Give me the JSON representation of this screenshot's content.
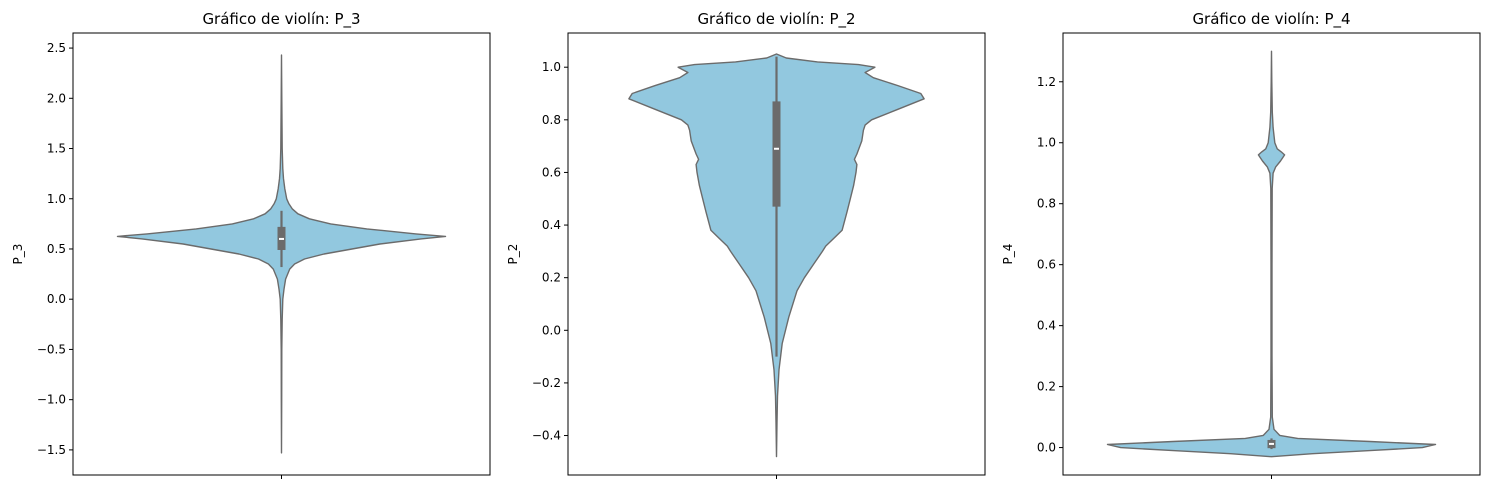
{
  "colors": {
    "fill": "#92c8df",
    "edge": "#6b6b6b",
    "axes": "#000000",
    "median": "#ffffff"
  },
  "chart_data": [
    {
      "type": "violin",
      "title": "Gráfico de violín: P_3",
      "ylabel": "P_3",
      "ylim": [
        -1.75,
        2.65
      ],
      "yticks": [
        -1.5,
        -1.0,
        -0.5,
        0.0,
        0.5,
        1.0,
        1.5,
        2.0,
        2.5
      ],
      "ytick_labels": [
        "−1.5",
        "−1.0",
        "−0.5",
        "0.0",
        "0.5",
        "1.0",
        "1.5",
        "2.0",
        "2.5"
      ],
      "box": {
        "min": 0.32,
        "q1": 0.49,
        "median": 0.6,
        "q3": 0.72,
        "max": 0.88
      },
      "range": [
        -1.53,
        2.43
      ],
      "density": [
        [
          -1.53,
          0.0
        ],
        [
          -1.0,
          0.001
        ],
        [
          -0.5,
          0.002
        ],
        [
          -0.2,
          0.004
        ],
        [
          0.0,
          0.008
        ],
        [
          0.1,
          0.015
        ],
        [
          0.2,
          0.025
        ],
        [
          0.3,
          0.05
        ],
        [
          0.35,
          0.08
        ],
        [
          0.4,
          0.14
        ],
        [
          0.45,
          0.26
        ],
        [
          0.5,
          0.43
        ],
        [
          0.55,
          0.6
        ],
        [
          0.6,
          0.85
        ],
        [
          0.625,
          1.0
        ],
        [
          0.65,
          0.82
        ],
        [
          0.7,
          0.52
        ],
        [
          0.75,
          0.3
        ],
        [
          0.8,
          0.17
        ],
        [
          0.85,
          0.1
        ],
        [
          0.9,
          0.065
        ],
        [
          0.95,
          0.045
        ],
        [
          1.0,
          0.032
        ],
        [
          1.1,
          0.02
        ],
        [
          1.2,
          0.012
        ],
        [
          1.3,
          0.008
        ],
        [
          1.5,
          0.004
        ],
        [
          2.0,
          0.002
        ],
        [
          2.43,
          0.0
        ]
      ]
    },
    {
      "type": "violin",
      "title": "Gráfico de violín: P_2",
      "ylabel": "P_2",
      "ylim": [
        -0.55,
        1.13
      ],
      "yticks": [
        -0.4,
        -0.2,
        0.0,
        0.2,
        0.4,
        0.6,
        0.8,
        1.0
      ],
      "ytick_labels": [
        "−0.4",
        "−0.2",
        "0.0",
        "0.2",
        "0.4",
        "0.6",
        "0.8",
        "1.0"
      ],
      "box": {
        "min": -0.1,
        "q1": 0.47,
        "median": 0.69,
        "q3": 0.87,
        "max": 1.04
      },
      "range": [
        -0.48,
        1.05
      ],
      "density": [
        [
          -0.48,
          0.0
        ],
        [
          -0.35,
          0.003
        ],
        [
          -0.25,
          0.006
        ],
        [
          -0.15,
          0.015
        ],
        [
          -0.05,
          0.035
        ],
        [
          0.05,
          0.075
        ],
        [
          0.15,
          0.125
        ],
        [
          0.2,
          0.17
        ],
        [
          0.25,
          0.225
        ],
        [
          0.3,
          0.28
        ],
        [
          0.32,
          0.3
        ],
        [
          0.35,
          0.35
        ],
        [
          0.38,
          0.4
        ],
        [
          0.45,
          0.43
        ],
        [
          0.5,
          0.45
        ],
        [
          0.55,
          0.47
        ],
        [
          0.6,
          0.485
        ],
        [
          0.63,
          0.49
        ],
        [
          0.65,
          0.475
        ],
        [
          0.67,
          0.49
        ],
        [
          0.72,
          0.52
        ],
        [
          0.76,
          0.53
        ],
        [
          0.78,
          0.54
        ],
        [
          0.8,
          0.58
        ],
        [
          0.84,
          0.74
        ],
        [
          0.88,
          0.9
        ],
        [
          0.9,
          0.88
        ],
        [
          0.93,
          0.74
        ],
        [
          0.96,
          0.59
        ],
        [
          0.98,
          0.54
        ],
        [
          1.0,
          0.6
        ],
        [
          1.01,
          0.5
        ],
        [
          1.02,
          0.25
        ],
        [
          1.035,
          0.06
        ],
        [
          1.05,
          0.0
        ]
      ]
    },
    {
      "type": "violin",
      "title": "Gráfico de violín: P_4",
      "ylabel": "P_4",
      "ylim": [
        -0.09,
        1.36
      ],
      "yticks": [
        0.0,
        0.2,
        0.4,
        0.6,
        0.8,
        1.0,
        1.2
      ],
      "ytick_labels": [
        "0.0",
        "0.2",
        "0.4",
        "0.6",
        "0.8",
        "1.0",
        "1.2"
      ],
      "box": {
        "min": -0.005,
        "q1": -0.002,
        "median": 0.012,
        "q3": 0.025,
        "max": 0.03
      },
      "range": [
        -0.03,
        1.3
      ],
      "density": [
        [
          -0.03,
          0.0
        ],
        [
          -0.02,
          0.25
        ],
        [
          -0.01,
          0.6
        ],
        [
          0.0,
          0.92
        ],
        [
          0.01,
          1.0
        ],
        [
          0.02,
          0.6
        ],
        [
          0.03,
          0.16
        ],
        [
          0.04,
          0.05
        ],
        [
          0.06,
          0.015
        ],
        [
          0.1,
          0.005
        ],
        [
          0.3,
          0.003
        ],
        [
          0.6,
          0.003
        ],
        [
          0.85,
          0.004
        ],
        [
          0.9,
          0.01
        ],
        [
          0.92,
          0.025
        ],
        [
          0.94,
          0.055
        ],
        [
          0.96,
          0.08
        ],
        [
          0.97,
          0.06
        ],
        [
          0.98,
          0.035
        ],
        [
          1.0,
          0.02
        ],
        [
          1.05,
          0.01
        ],
        [
          1.1,
          0.005
        ],
        [
          1.2,
          0.002
        ],
        [
          1.3,
          0.0
        ]
      ]
    }
  ]
}
